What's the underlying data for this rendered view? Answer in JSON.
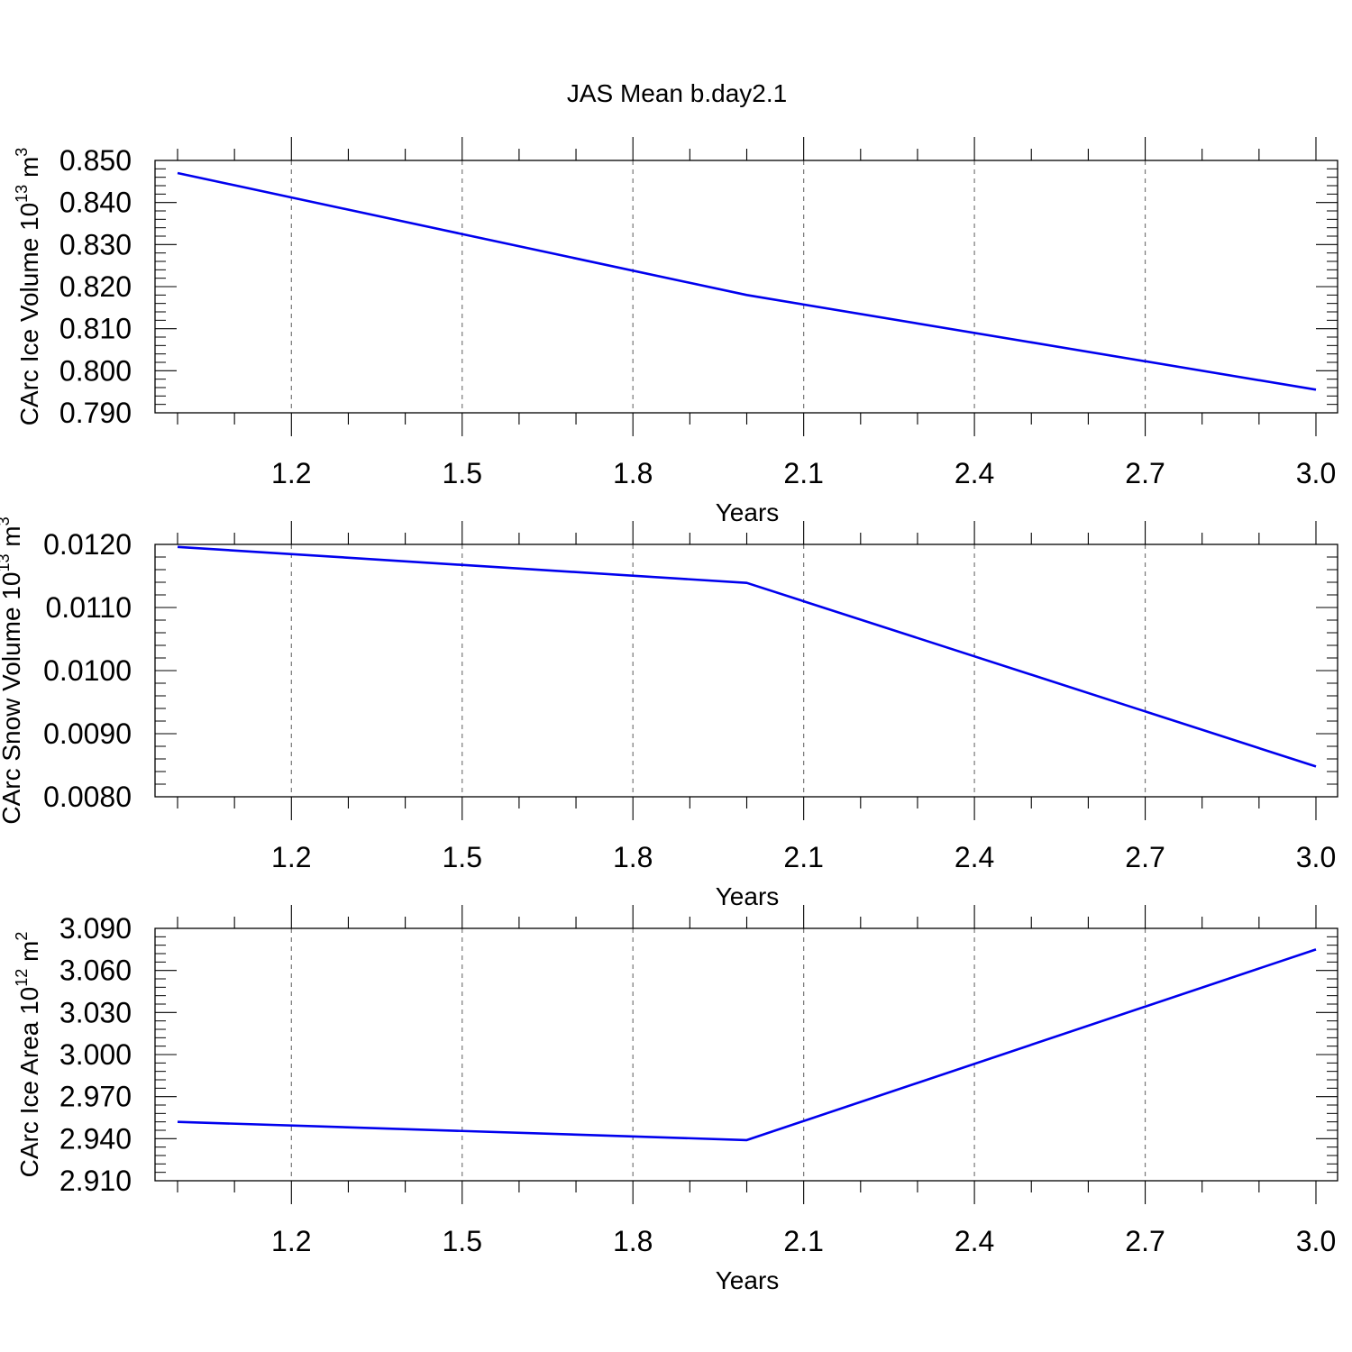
{
  "page": {
    "title": "JAS Mean b.day2.1"
  },
  "chart_data": [
    {
      "type": "line",
      "xlabel": "Years",
      "ylabel_main": "CArc Ice Volume 10",
      "ylabel_exp": "13",
      "ylabel_unit": " m",
      "ylabel_unit_exp": "3",
      "xlim": [
        1.0,
        3.0
      ],
      "ylim": [
        0.79,
        0.85
      ],
      "xticks": [
        1.2,
        1.5,
        1.8,
        2.1,
        2.4,
        2.7,
        3.0
      ],
      "xtick_labels": [
        "1.2",
        "1.5",
        "1.8",
        "2.1",
        "2.4",
        "2.7",
        "3.0"
      ],
      "yticks": [
        0.79,
        0.8,
        0.81,
        0.82,
        0.83,
        0.84,
        0.85
      ],
      "ytick_labels": [
        "0.790",
        "0.800",
        "0.810",
        "0.820",
        "0.830",
        "0.840",
        "0.850"
      ],
      "grid": "x-dashed",
      "series": [
        {
          "color": "#0000ee",
          "x": [
            1.0,
            2.0,
            3.0
          ],
          "y": [
            0.847,
            0.818,
            0.7955
          ]
        }
      ]
    },
    {
      "type": "line",
      "xlabel": "Years",
      "ylabel_main": "CArc Snow Volume 10",
      "ylabel_exp": "13",
      "ylabel_unit": " m",
      "ylabel_unit_exp": "3",
      "xlim": [
        1.0,
        3.0
      ],
      "ylim": [
        0.008,
        0.012
      ],
      "xticks": [
        1.2,
        1.5,
        1.8,
        2.1,
        2.4,
        2.7,
        3.0
      ],
      "xtick_labels": [
        "1.2",
        "1.5",
        "1.8",
        "2.1",
        "2.4",
        "2.7",
        "3.0"
      ],
      "yticks": [
        0.008,
        0.009,
        0.01,
        0.011,
        0.012
      ],
      "ytick_labels": [
        "0.0080",
        "0.0090",
        "0.0100",
        "0.0110",
        "0.0120"
      ],
      "grid": "x-dashed",
      "series": [
        {
          "color": "#0000ee",
          "x": [
            1.0,
            2.0,
            3.0
          ],
          "y": [
            0.01196,
            0.01139,
            0.00848
          ]
        }
      ]
    },
    {
      "type": "line",
      "xlabel": "Years",
      "ylabel_main": "CArc Ice Area 10",
      "ylabel_exp": "12",
      "ylabel_unit": " m",
      "ylabel_unit_exp": "2",
      "xlim": [
        1.0,
        3.0
      ],
      "ylim": [
        2.91,
        3.09
      ],
      "xticks": [
        1.2,
        1.5,
        1.8,
        2.1,
        2.4,
        2.7,
        3.0
      ],
      "xtick_labels": [
        "1.2",
        "1.5",
        "1.8",
        "2.1",
        "2.4",
        "2.7",
        "3.0"
      ],
      "yticks": [
        2.91,
        2.94,
        2.97,
        3.0,
        3.03,
        3.06,
        3.09
      ],
      "ytick_labels": [
        "2.910",
        "2.940",
        "2.970",
        "3.000",
        "3.030",
        "3.060",
        "3.090"
      ],
      "grid": "x-dashed",
      "series": [
        {
          "color": "#0000ee",
          "x": [
            1.0,
            2.0,
            3.0
          ],
          "y": [
            2.952,
            2.939,
            3.075
          ]
        }
      ]
    }
  ]
}
